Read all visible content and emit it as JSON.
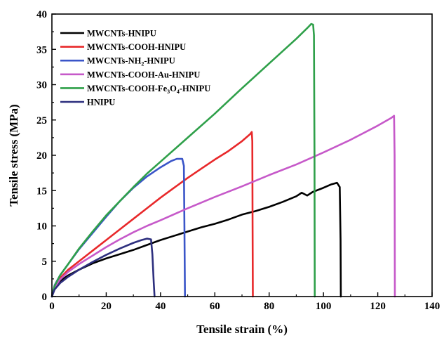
{
  "chart_data": {
    "type": "line",
    "xlabel": "Tensile strain (%)",
    "ylabel": "Tensile stress (MPa)",
    "xlim": [
      0,
      140
    ],
    "ylim": [
      0,
      40
    ],
    "xticks": [
      0,
      20,
      40,
      60,
      80,
      100,
      120,
      140
    ],
    "yticks": [
      0,
      5,
      10,
      15,
      20,
      25,
      30,
      35,
      40
    ],
    "grid": false,
    "legend_position": "top-left",
    "series": [
      {
        "name": "MWCNTs-HNIPU",
        "color": "#000000",
        "points": [
          [
            0,
            0
          ],
          [
            1,
            1.3
          ],
          [
            3,
            2.2
          ],
          [
            6,
            3.0
          ],
          [
            10,
            3.8
          ],
          [
            15,
            4.7
          ],
          [
            20,
            5.4
          ],
          [
            25,
            6.0
          ],
          [
            30,
            6.6
          ],
          [
            35,
            7.3
          ],
          [
            40,
            8.0
          ],
          [
            45,
            8.6
          ],
          [
            50,
            9.2
          ],
          [
            55,
            9.8
          ],
          [
            60,
            10.3
          ],
          [
            65,
            10.9
          ],
          [
            70,
            11.6
          ],
          [
            75,
            12.1
          ],
          [
            80,
            12.7
          ],
          [
            85,
            13.4
          ],
          [
            90,
            14.2
          ],
          [
            92,
            14.7
          ],
          [
            94,
            14.3
          ],
          [
            96,
            14.8
          ],
          [
            100,
            15.4
          ],
          [
            103,
            15.9
          ],
          [
            105,
            16.1
          ],
          [
            106,
            15.5
          ],
          [
            106.3,
            8
          ],
          [
            106.4,
            0
          ]
        ]
      },
      {
        "name": "MWCNTs-COOH-HNIPU",
        "color": "#e8282a",
        "points": [
          [
            0,
            0
          ],
          [
            1,
            1.4
          ],
          [
            3,
            2.6
          ],
          [
            6,
            3.8
          ],
          [
            10,
            5.0
          ],
          [
            15,
            6.5
          ],
          [
            20,
            8.0
          ],
          [
            25,
            9.5
          ],
          [
            30,
            11.0
          ],
          [
            35,
            12.5
          ],
          [
            40,
            14.0
          ],
          [
            45,
            15.4
          ],
          [
            50,
            16.8
          ],
          [
            55,
            18.1
          ],
          [
            60,
            19.4
          ],
          [
            65,
            20.6
          ],
          [
            70,
            22.0
          ],
          [
            73,
            23.0
          ],
          [
            73.6,
            23.3
          ],
          [
            73.8,
            22
          ],
          [
            73.9,
            10
          ],
          [
            74,
            0
          ]
        ]
      },
      {
        "name": "MWCNTs-NH2-HNIPU",
        "color": "#3a55c8",
        "points": [
          [
            0,
            0
          ],
          [
            1,
            1.6
          ],
          [
            3,
            3.0
          ],
          [
            6,
            4.6
          ],
          [
            10,
            6.7
          ],
          [
            15,
            9.0
          ],
          [
            20,
            11.3
          ],
          [
            25,
            13.5
          ],
          [
            30,
            15.4
          ],
          [
            35,
            17.0
          ],
          [
            40,
            18.3
          ],
          [
            44,
            19.2
          ],
          [
            46,
            19.5
          ],
          [
            48,
            19.5
          ],
          [
            48.6,
            18.5
          ],
          [
            48.8,
            10
          ],
          [
            49,
            0
          ]
        ]
      },
      {
        "name": "MWCNTs-COOH-Au-HNIPU",
        "color": "#c659c9",
        "points": [
          [
            0,
            0
          ],
          [
            1,
            1.3
          ],
          [
            3,
            2.4
          ],
          [
            6,
            3.5
          ],
          [
            10,
            4.6
          ],
          [
            15,
            5.8
          ],
          [
            20,
            7.0
          ],
          [
            25,
            8.1
          ],
          [
            30,
            9.1
          ],
          [
            35,
            10.0
          ],
          [
            40,
            10.8
          ],
          [
            50,
            12.5
          ],
          [
            60,
            14.1
          ],
          [
            70,
            15.6
          ],
          [
            80,
            17.2
          ],
          [
            90,
            18.7
          ],
          [
            100,
            20.4
          ],
          [
            110,
            22.2
          ],
          [
            120,
            24.2
          ],
          [
            125,
            25.3
          ],
          [
            126,
            25.6
          ],
          [
            126.2,
            20
          ],
          [
            126.3,
            0
          ]
        ]
      },
      {
        "name": "MWCNTs-COOH-Fe3O4-HNIPU",
        "color": "#2fa04a",
        "points": [
          [
            0,
            0
          ],
          [
            1,
            1.5
          ],
          [
            3,
            3.0
          ],
          [
            6,
            4.6
          ],
          [
            10,
            6.8
          ],
          [
            15,
            9.2
          ],
          [
            20,
            11.5
          ],
          [
            25,
            13.5
          ],
          [
            30,
            15.5
          ],
          [
            35,
            17.4
          ],
          [
            40,
            19.1
          ],
          [
            50,
            22.5
          ],
          [
            60,
            25.9
          ],
          [
            70,
            29.5
          ],
          [
            80,
            33.0
          ],
          [
            90,
            36.5
          ],
          [
            94,
            38.0
          ],
          [
            95.5,
            38.6
          ],
          [
            96.2,
            38.5
          ],
          [
            96.5,
            37
          ],
          [
            96.7,
            20
          ],
          [
            96.8,
            0
          ]
        ]
      },
      {
        "name": "HNIPU",
        "color": "#2d2f7e",
        "points": [
          [
            0,
            0
          ],
          [
            1,
            1.0
          ],
          [
            3,
            1.9
          ],
          [
            6,
            2.8
          ],
          [
            10,
            3.8
          ],
          [
            15,
            4.9
          ],
          [
            20,
            5.9
          ],
          [
            25,
            6.8
          ],
          [
            30,
            7.6
          ],
          [
            33,
            8.0
          ],
          [
            35,
            8.2
          ],
          [
            36.5,
            8.1
          ],
          [
            37,
            6
          ],
          [
            37.5,
            2
          ],
          [
            37.8,
            0
          ]
        ]
      }
    ]
  }
}
